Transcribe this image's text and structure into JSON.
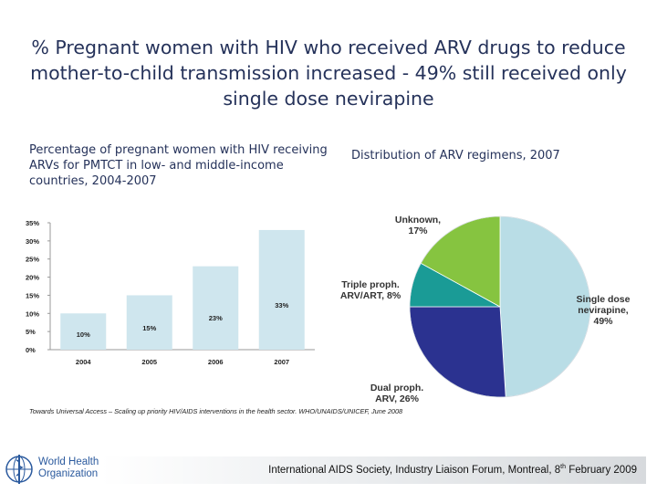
{
  "slide": {
    "title": "% Pregnant women with HIV who received ARV drugs to reduce mother-to-child transmission increased - 49% still received only single dose nevirapine",
    "source": "Towards Universal Access – Scaling up priority HIV/AIDS interventions in the health sector. WHO/UNAIDS/UNICEF, June 2008",
    "footer": {
      "text": "International AIDS Society, Industry Liaison Forum, Montreal, 8",
      "sup": "th",
      "tail": " February 2009"
    },
    "logo": {
      "line1": "World Health",
      "line2": "Organization"
    }
  },
  "colors": {
    "bar_fill": "#cfe6ee",
    "pie_single": "#b9dde6",
    "pie_dual": "#2b3290",
    "pie_triple": "#1a9b96",
    "pie_unknown": "#86c440",
    "logo_blue": "#2b5a9e"
  },
  "chart_data": [
    {
      "type": "bar",
      "title": "Percentage of pregnant women with HIV receiving ARVs for PMTCT in low- and middle-income countries, 2004-2007",
      "categories": [
        "2004",
        "2005",
        "2006",
        "2007"
      ],
      "values": [
        10,
        15,
        23,
        33
      ],
      "value_labels": [
        "10%",
        "15%",
        "23%",
        "33%"
      ],
      "ylim": [
        0,
        35
      ],
      "yticks": [
        "0%",
        "5%",
        "10%",
        "15%",
        "20%",
        "25%",
        "30%",
        "35%"
      ],
      "xlabel": "",
      "ylabel": "",
      "grid": false
    },
    {
      "type": "pie",
      "title": "Distribution of ARV regimens, 2007",
      "slices": [
        {
          "label": "Single dose nevirapine, 49%",
          "lines": [
            "Single dose",
            "nevirapine,",
            "49%"
          ],
          "value": 49
        },
        {
          "label": "Dual proph. ARV, 26%",
          "lines": [
            "Dual proph.",
            "ARV, 26%"
          ],
          "value": 26
        },
        {
          "label": "Triple proph. ARV/ART, 8%",
          "lines": [
            "Triple proph.",
            "ARV/ART, 8%"
          ],
          "value": 8
        },
        {
          "label": "Unknown, 17%",
          "lines": [
            "Unknown,",
            "17%"
          ],
          "value": 17
        }
      ]
    }
  ]
}
